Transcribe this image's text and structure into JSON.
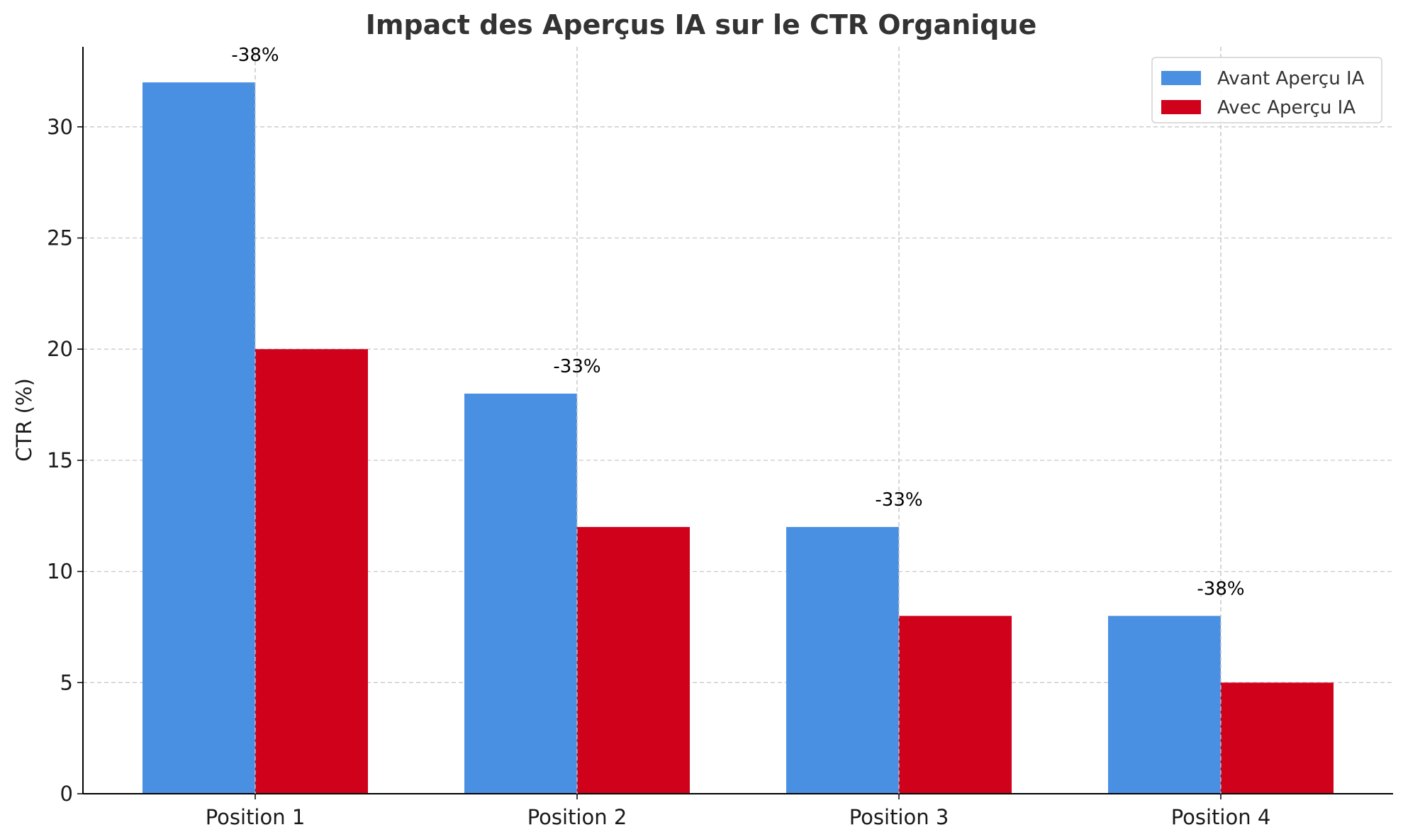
{
  "chart_data": {
    "type": "bar",
    "title": "Impact des Aperçus IA sur le CTR Organique",
    "xlabel": "",
    "ylabel": "CTR (%)",
    "categories": [
      "Position 1",
      "Position 2",
      "Position 3",
      "Position 4"
    ],
    "series": [
      {
        "name": "Avant Aperçu IA",
        "color": "#4a90e2",
        "values": [
          32,
          18,
          12,
          8
        ]
      },
      {
        "name": "Avec Aperçu IA",
        "color": "#d0021b",
        "values": [
          20,
          12,
          8,
          5
        ]
      }
    ],
    "annotations": [
      "-38%",
      "-33%",
      "-33%",
      "-38%"
    ],
    "ylim": [
      0,
      33.6
    ],
    "yticks": [
      0,
      5,
      10,
      15,
      20,
      25,
      30
    ],
    "grid": true,
    "legend_position": "top-right"
  }
}
